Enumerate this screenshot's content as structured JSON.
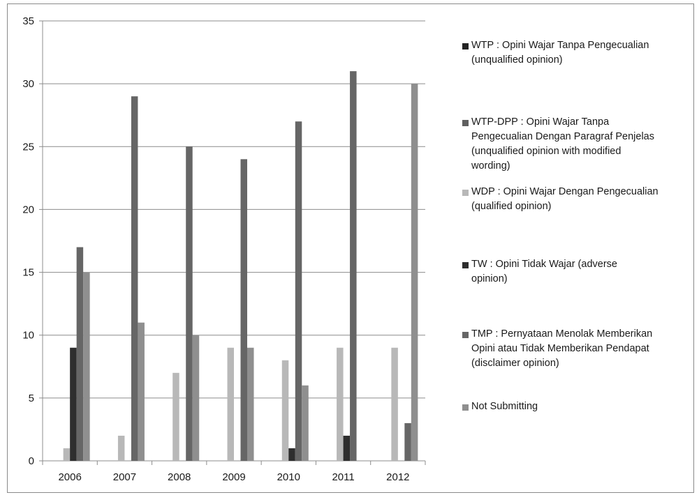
{
  "chart_data": {
    "type": "bar",
    "title": "",
    "xlabel": "",
    "ylabel": "",
    "categories": [
      "2006",
      "2007",
      "2008",
      "2009",
      "2010",
      "2011",
      "2012"
    ],
    "ylim": [
      0,
      35
    ],
    "yticks": [
      0,
      5,
      10,
      15,
      20,
      25,
      30,
      35
    ],
    "grid": true,
    "legend_position": "right",
    "series": [
      {
        "name": "WTP : Opini Wajar Tanpa Pengecualian\n(unqualified opinion)",
        "color": "#232323",
        "values": [
          0,
          0,
          0,
          0,
          0,
          0,
          0
        ]
      },
      {
        "name": "WTP-DPP : Opini Wajar Tanpa\nPengecualian Dengan Paragraf Penjelas\n(unqualified opinion with modified\nwording)",
        "color": "#5f5f5f",
        "values": [
          0,
          0,
          0,
          0,
          0,
          0,
          0
        ]
      },
      {
        "name": "WDP : Opini Wajar Dengan Pengecualian\n(qualified opinion)",
        "color": "#b8b8b8",
        "values": [
          1,
          2,
          7,
          9,
          8,
          9,
          9
        ]
      },
      {
        "name": "TW : Opini Tidak Wajar (adverse\nopinion)",
        "color": "#2e2e2e",
        "values": [
          9,
          0,
          0,
          0,
          1,
          2,
          0
        ]
      },
      {
        "name": "TMP : Pernyataan Menolak Memberikan\nOpini atau Tidak Memberikan Pendapat\n(disclaimer opinion)",
        "color": "#666666",
        "values": [
          17,
          29,
          25,
          24,
          27,
          31,
          3
        ]
      },
      {
        "name": "Not Submitting",
        "color": "#8f8f8f",
        "values": [
          15,
          11,
          10,
          9,
          6,
          0,
          30
        ]
      }
    ]
  }
}
